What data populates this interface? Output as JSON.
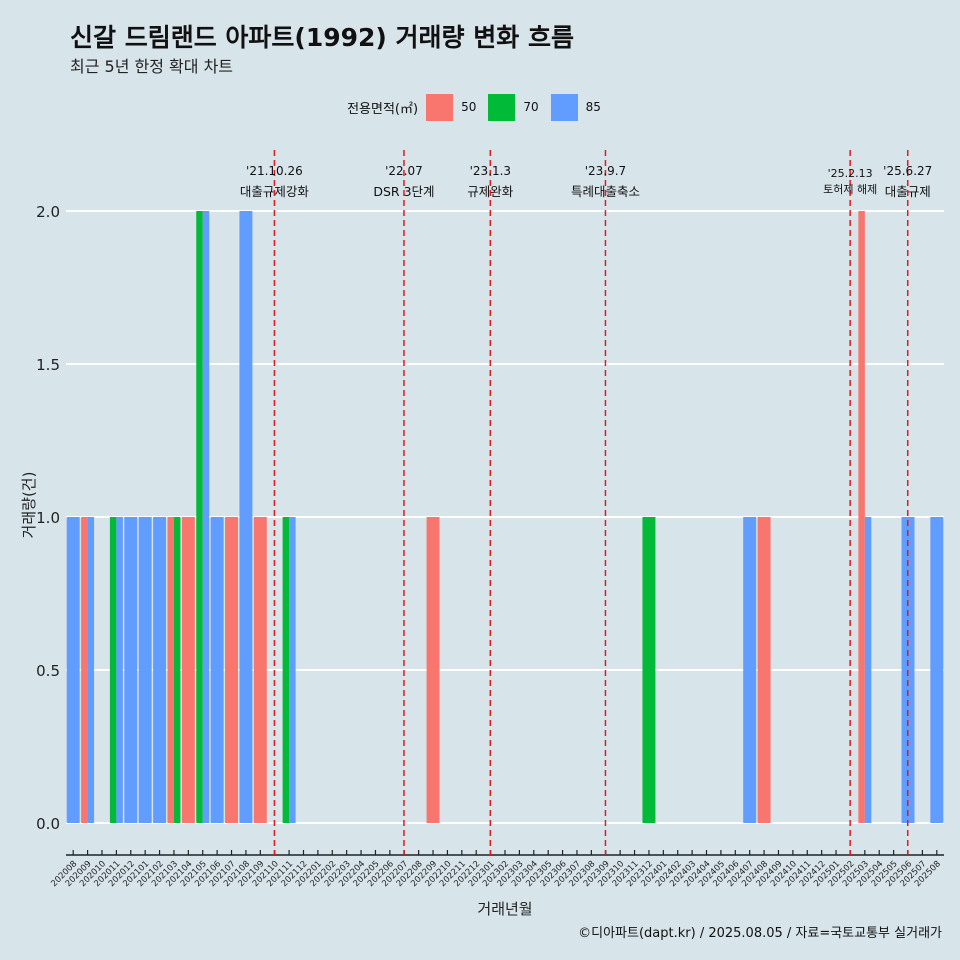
{
  "title": "신갈 드림랜드 아파트(1992) 거래량 변화 흐름",
  "subtitle": "최근 5년 한정 확대 차트",
  "legend": {
    "title": "전용면적(㎡)",
    "items": [
      {
        "label": "50",
        "color": "#f8766d"
      },
      {
        "label": "70",
        "color": "#00ba38"
      },
      {
        "label": "85",
        "color": "#619cff"
      }
    ]
  },
  "caption": "©디아파트(dapt.kr) / 2025.08.05 / 자료=국토교통부 실거래가",
  "chart_data": {
    "type": "bar",
    "stacking": "dodge",
    "xlabel": "거래년월",
    "ylabel": "거래량(건)",
    "ylim": [
      0,
      2
    ],
    "yticks": [
      0.0,
      0.5,
      1.0,
      1.5,
      2.0
    ],
    "ytick_labels": [
      "0.0",
      "0.5",
      "1.0",
      "1.5",
      "2.0"
    ],
    "grid": true,
    "legend_position": "top",
    "categories": [
      "202008",
      "202009",
      "202010",
      "202011",
      "202012",
      "202101",
      "202102",
      "202103",
      "202104",
      "202105",
      "202106",
      "202107",
      "202108",
      "202109",
      "202110",
      "202111",
      "202112",
      "202201",
      "202202",
      "202203",
      "202204",
      "202205",
      "202206",
      "202207",
      "202208",
      "202209",
      "202210",
      "202211",
      "202212",
      "202301",
      "202302",
      "202303",
      "202304",
      "202305",
      "202306",
      "202307",
      "202308",
      "202309",
      "202310",
      "202311",
      "202312",
      "202401",
      "202402",
      "202403",
      "202404",
      "202405",
      "202406",
      "202407",
      "202408",
      "202409",
      "202410",
      "202411",
      "202412",
      "202501",
      "202502",
      "202503",
      "202504",
      "202505",
      "202506",
      "202507",
      "202508"
    ],
    "series": [
      {
        "name": "50",
        "color": "#f8766d",
        "values": [
          0,
          1,
          0,
          0,
          0,
          0,
          0,
          1,
          1,
          0,
          0,
          1,
          0,
          1,
          0,
          0,
          0,
          0,
          0,
          0,
          0,
          0,
          0,
          0,
          0,
          1,
          0,
          0,
          0,
          0,
          0,
          0,
          0,
          0,
          0,
          0,
          0,
          0,
          0,
          0,
          0,
          0,
          0,
          0,
          0,
          0,
          0,
          0,
          1,
          0,
          0,
          0,
          0,
          0,
          0,
          2,
          0,
          0,
          0,
          0,
          0
        ]
      },
      {
        "name": "70",
        "color": "#00ba38",
        "values": [
          0,
          0,
          0,
          1,
          0,
          0,
          0,
          1,
          0,
          2,
          0,
          0,
          0,
          0,
          0,
          1,
          0,
          0,
          0,
          0,
          0,
          0,
          0,
          0,
          0,
          0,
          0,
          0,
          0,
          0,
          0,
          0,
          0,
          0,
          0,
          0,
          0,
          0,
          0,
          0,
          1,
          0,
          0,
          0,
          0,
          0,
          0,
          0,
          0,
          0,
          0,
          0,
          0,
          0,
          0,
          0,
          0,
          0,
          0,
          0,
          0
        ]
      },
      {
        "name": "85",
        "color": "#619cff",
        "values": [
          1,
          1,
          0,
          1,
          1,
          1,
          1,
          0,
          0,
          2,
          1,
          0,
          2,
          0,
          0,
          1,
          0,
          0,
          0,
          0,
          0,
          0,
          0,
          0,
          0,
          0,
          0,
          0,
          0,
          0,
          0,
          0,
          0,
          0,
          0,
          0,
          0,
          0,
          0,
          0,
          0,
          0,
          0,
          0,
          0,
          0,
          0,
          1,
          0,
          0,
          0,
          0,
          0,
          0,
          0,
          1,
          0,
          0,
          1,
          0,
          1
        ]
      }
    ],
    "annotations": [
      {
        "date_label": "'21.10.26",
        "event_label": "대출규제강화",
        "at_month": "202110"
      },
      {
        "date_label": "'22.07",
        "event_label": "DSR 3단계",
        "at_month": "202207"
      },
      {
        "date_label": "'23.1.3",
        "event_label": "규제완화",
        "at_month": "202301"
      },
      {
        "date_label": "'23.9.7",
        "event_label": "특례대출축소",
        "at_month": "202309"
      },
      {
        "date_label": "'25.2.13",
        "event_label": "토허제 해제",
        "at_month": "202502"
      },
      {
        "date_label": "'25.6.27",
        "event_label": "대출규제",
        "at_month": "202506"
      }
    ],
    "annotation_color": "#e41a1c"
  }
}
